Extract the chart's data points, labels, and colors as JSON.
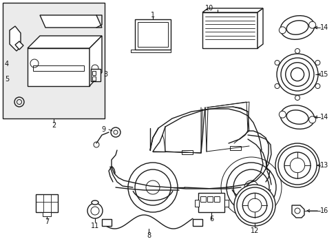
{
  "bg_color": "#ffffff",
  "box_bg": "#ebebeb",
  "line_color": "#1a1a1a",
  "label_color": "#111111",
  "fig_width": 4.89,
  "fig_height": 3.6,
  "dpi": 100
}
